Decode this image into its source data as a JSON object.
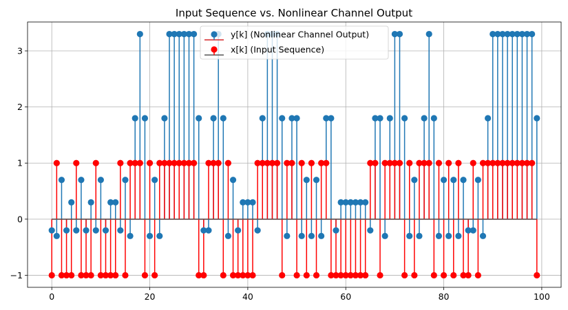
{
  "chart_data": {
    "type": "stem",
    "title": "Input Sequence vs. Nonlinear Channel Output",
    "xlabel": "",
    "ylabel": "",
    "xlim": [
      -4.95,
      103.95
    ],
    "ylim": [
      -1.215,
      3.515
    ],
    "xticks": [
      0,
      20,
      40,
      60,
      80,
      100
    ],
    "yticks": [
      -1,
      0,
      1,
      2,
      3
    ],
    "grid": true,
    "legend_position": "top-center",
    "series": [
      {
        "name": "y[k] (Nonlinear Channel Output)",
        "marker_color": "#1f77b4",
        "stem_color": "#1f77b4",
        "baseline_color": "#d62728",
        "x_start": 0,
        "values": [
          -0.2,
          -0.3,
          0.7,
          -0.2,
          0.3,
          -0.2,
          0.7,
          -0.2,
          0.3,
          -0.2,
          0.7,
          -0.2,
          0.3,
          0.3,
          -0.2,
          0.7,
          -0.3,
          1.8,
          3.3,
          1.8,
          -0.3,
          0.7,
          -0.3,
          1.8,
          3.3,
          3.3,
          3.3,
          3.3,
          3.3,
          3.3,
          1.8,
          -0.2,
          -0.2,
          1.8,
          3.3,
          1.8,
          -0.3,
          0.7,
          -0.2,
          0.3,
          0.3,
          0.3,
          -0.2,
          1.8,
          3.3,
          3.3,
          3.3,
          1.8,
          -0.3,
          1.8,
          1.8,
          -0.3,
          0.7,
          -0.3,
          0.7,
          -0.3,
          1.8,
          1.8,
          -0.2,
          0.3,
          0.3,
          0.3,
          0.3,
          0.3,
          0.3,
          -0.2,
          1.8,
          1.8,
          -0.3,
          1.8,
          3.3,
          3.3,
          1.8,
          -0.3,
          0.7,
          -0.3,
          1.8,
          3.3,
          1.8,
          -0.3,
          0.7,
          -0.3,
          0.7,
          -0.3,
          0.7,
          -0.2,
          -0.2,
          0.7,
          -0.3,
          1.8,
          3.3,
          3.3,
          3.3,
          3.3,
          3.3,
          3.3,
          3.3,
          3.3,
          3.3,
          1.8
        ]
      },
      {
        "name": "x[k] (Input Sequence)",
        "marker_color": "#ff0000",
        "stem_color": "#ff0000",
        "baseline_color": "#555555",
        "x_start": 0,
        "values": [
          -1,
          1,
          -1,
          -1,
          -1,
          1,
          -1,
          -1,
          -1,
          1,
          -1,
          -1,
          -1,
          -1,
          1,
          -1,
          1,
          1,
          1,
          -1,
          1,
          -1,
          1,
          1,
          1,
          1,
          1,
          1,
          1,
          1,
          -1,
          -1,
          1,
          1,
          1,
          -1,
          1,
          -1,
          -1,
          -1,
          -1,
          -1,
          1,
          1,
          1,
          1,
          1,
          -1,
          1,
          1,
          -1,
          1,
          -1,
          1,
          -1,
          1,
          1,
          -1,
          -1,
          -1,
          -1,
          -1,
          -1,
          -1,
          -1,
          1,
          1,
          -1,
          1,
          1,
          1,
          1,
          -1,
          1,
          -1,
          1,
          1,
          1,
          -1,
          1,
          -1,
          1,
          -1,
          1,
          -1,
          -1,
          1,
          -1,
          1,
          1,
          1,
          1,
          1,
          1,
          1,
          1,
          1,
          1,
          1,
          -1
        ]
      }
    ]
  }
}
